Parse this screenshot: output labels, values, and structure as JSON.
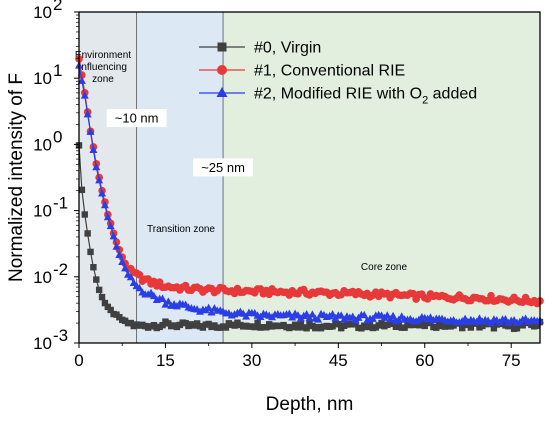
{
  "chart_data": {
    "type": "scatter",
    "xlabel": "Depth, nm",
    "ylabel": "Normalized intensity of F",
    "xlim": [
      0,
      80
    ],
    "ylim": [
      0.001,
      100
    ],
    "yscale": "log",
    "x_ticks": [
      0,
      15,
      30,
      45,
      60,
      75
    ],
    "y_ticks": [
      {
        "value": 0.001,
        "base": "10",
        "exp": "-3"
      },
      {
        "value": 0.01,
        "base": "10",
        "exp": "-2"
      },
      {
        "value": 0.1,
        "base": "10",
        "exp": "-1"
      },
      {
        "value": 1,
        "base": "10",
        "exp": "0"
      },
      {
        "value": 10,
        "base": "10",
        "exp": "1"
      },
      {
        "value": 100,
        "base": "10",
        "exp": "2"
      }
    ],
    "legend_position": "top-right",
    "zones": [
      {
        "label_lines": [
          "Environment",
          "influencing",
          "zone"
        ],
        "x_start": 0,
        "x_end": 10,
        "color": "#e3e8ec"
      },
      {
        "label_lines": [
          "Transition zone"
        ],
        "x_start": 10,
        "x_end": 25,
        "color": "#dce9f5"
      },
      {
        "label_lines": [
          "Core zone"
        ],
        "x_start": 25,
        "x_end": 80,
        "color": "#e2efdf"
      }
    ],
    "annotations": [
      {
        "text": "~10 nm",
        "x": 10,
        "y": 2.5
      },
      {
        "text": "~25 nm",
        "x": 25,
        "y": 0.45
      }
    ],
    "series": [
      {
        "name": "#0, Virgin",
        "color": "#404040",
        "marker": "square",
        "points": [
          [
            0,
            1.0
          ],
          [
            0.25,
            0.45
          ],
          [
            0.5,
            0.2
          ],
          [
            1,
            0.09
          ],
          [
            1.5,
            0.045
          ],
          [
            2,
            0.024
          ],
          [
            2.5,
            0.014
          ],
          [
            3,
            0.009
          ],
          [
            3.5,
            0.0065
          ],
          [
            4,
            0.005
          ],
          [
            4.5,
            0.004
          ],
          [
            5,
            0.0034
          ],
          [
            6,
            0.0028
          ],
          [
            7,
            0.0024
          ],
          [
            8,
            0.0021
          ],
          [
            10,
            0.0018
          ],
          [
            15,
            0.0019
          ],
          [
            20,
            0.0018
          ],
          [
            30,
            0.0019
          ],
          [
            45,
            0.0018
          ],
          [
            60,
            0.0019
          ],
          [
            75,
            0.0018
          ],
          [
            80,
            0.0019
          ]
        ]
      },
      {
        "name": "#1, Conventional RIE",
        "color": "#e8393a",
        "marker": "circle",
        "points": [
          [
            0,
            20.0
          ],
          [
            1,
            6.0
          ],
          [
            2,
            1.6
          ],
          [
            3,
            0.5
          ],
          [
            4,
            0.2
          ],
          [
            5,
            0.09
          ],
          [
            6,
            0.045
          ],
          [
            7,
            0.025
          ],
          [
            8,
            0.016
          ],
          [
            9,
            0.012
          ],
          [
            10,
            0.0105
          ],
          [
            12,
            0.0085
          ],
          [
            15,
            0.0072
          ],
          [
            20,
            0.0065
          ],
          [
            25,
            0.0062
          ],
          [
            30,
            0.006
          ],
          [
            40,
            0.0058
          ],
          [
            50,
            0.0055
          ],
          [
            60,
            0.005
          ],
          [
            70,
            0.0048
          ],
          [
            75,
            0.0045
          ],
          [
            80,
            0.0043
          ]
        ]
      },
      {
        "name": "#2, Modified RIE with O2 added",
        "name_main": "#2, Modified RIE with O",
        "name_sub": "2",
        "name_tail": " added",
        "color": "#2b3ee6",
        "marker": "triangle",
        "points": [
          [
            0,
            16.0
          ],
          [
            1,
            5.5
          ],
          [
            2,
            1.5
          ],
          [
            3,
            0.45
          ],
          [
            4,
            0.18
          ],
          [
            5,
            0.08
          ],
          [
            6,
            0.04
          ],
          [
            7,
            0.021
          ],
          [
            8,
            0.013
          ],
          [
            9,
            0.009
          ],
          [
            10,
            0.0072
          ],
          [
            12,
            0.0055
          ],
          [
            15,
            0.0042
          ],
          [
            20,
            0.0033
          ],
          [
            25,
            0.0029
          ],
          [
            30,
            0.0026
          ],
          [
            40,
            0.0025
          ],
          [
            50,
            0.0024
          ],
          [
            60,
            0.0023
          ],
          [
            70,
            0.0022
          ],
          [
            80,
            0.0021
          ]
        ]
      }
    ]
  }
}
